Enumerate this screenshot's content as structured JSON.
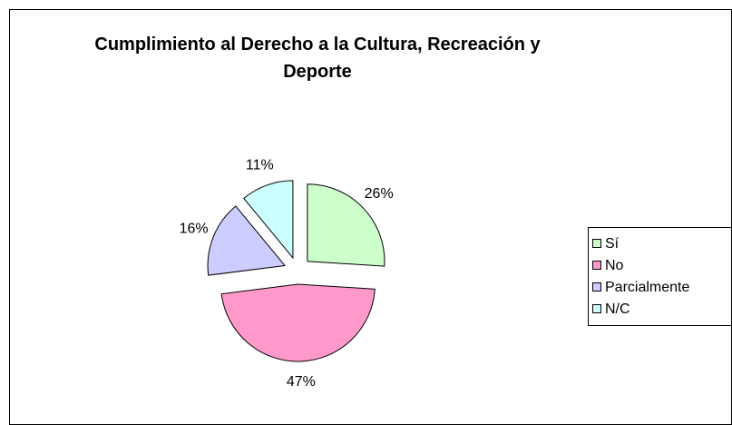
{
  "chart_data": {
    "type": "pie",
    "title": "Cumplimiento al Derecho a la Cultura, Recreación y Deporte",
    "categories": [
      "Sí",
      "No",
      "Parcialmente",
      "N/C"
    ],
    "values": [
      26,
      47,
      16,
      11
    ],
    "colors": [
      "#ccffcc",
      "#ff99cc",
      "#ccccff",
      "#ccffff"
    ],
    "legend": "right"
  }
}
